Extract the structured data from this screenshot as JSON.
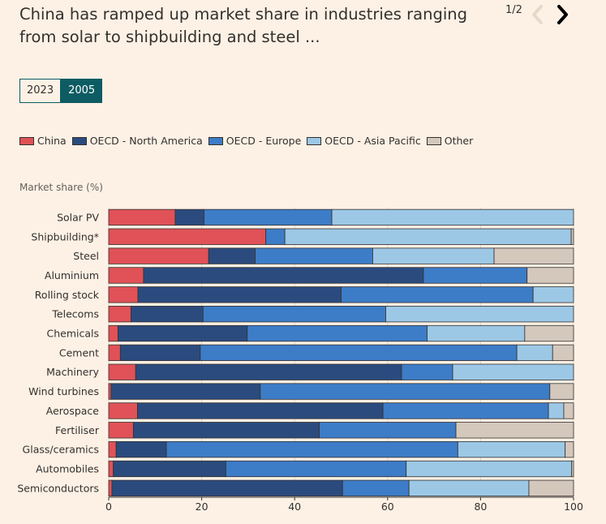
{
  "header": {
    "title": "China has ramped up market share in industries ranging from solar to shipbuilding and steel ...",
    "pager": "1/2"
  },
  "tabs": [
    {
      "label": "2023",
      "active": false
    },
    {
      "label": "2005",
      "active": true
    }
  ],
  "icons": {
    "prev": "chevron-left-icon",
    "next": "chevron-right-icon"
  },
  "colors": {
    "background": "#fdf1e5",
    "accent": "#0d5c63",
    "China": "#e05257",
    "OECD - North America": "#2b4b7e",
    "OECD - Europe": "#3d7cc7",
    "OECD - Asia Pacific": "#9cc8e6",
    "Other": "#d4c8bd"
  },
  "chart_data": {
    "type": "bar",
    "orientation": "horizontal",
    "stacked": true,
    "ylabel": "Market share (%)",
    "xlim": [
      0,
      100
    ],
    "xticks": [
      0,
      20,
      40,
      60,
      80,
      100
    ],
    "legend_position": "top",
    "categories": [
      "Solar PV",
      "Shipbuilding*",
      "Steel",
      "Aluminium",
      "Rolling stock",
      "Telecoms",
      "Chemicals",
      "Cement",
      "Machinery",
      "Wind turbines",
      "Aerospace",
      "Fertiliser",
      "Glass/ceramics",
      "Automobiles",
      "Semiconductors"
    ],
    "series": [
      {
        "name": "China",
        "values": [
          14.3,
          33.8,
          21.5,
          7.5,
          6.3,
          4.8,
          2,
          2.5,
          5.8,
          0.5,
          6.2,
          5.3,
          1.6,
          1,
          0.7
        ]
      },
      {
        "name": "OECD - North America",
        "values": [
          6.2,
          0,
          10,
          60.2,
          43.7,
          15.5,
          27.8,
          17.2,
          57.2,
          32.1,
          52.8,
          40,
          10.8,
          24.2,
          49.6
        ]
      },
      {
        "name": "OECD - Europe",
        "values": [
          27.5,
          4.1,
          25.3,
          22.3,
          41.3,
          39.3,
          38.7,
          68.1,
          11,
          62.3,
          35.6,
          29.4,
          62.7,
          38.8,
          14.3
        ]
      },
      {
        "name": "OECD - Asia Pacific",
        "values": [
          52,
          61.6,
          26.1,
          0,
          8.7,
          40.4,
          21,
          7.7,
          26,
          0,
          3.3,
          0,
          23.1,
          35.6,
          25.8
        ]
      },
      {
        "name": "Other",
        "values": [
          0,
          0.5,
          17.1,
          10,
          0,
          0,
          10.5,
          4.5,
          0,
          5.1,
          2.1,
          25.3,
          1.8,
          0.4,
          9.6
        ]
      }
    ]
  }
}
